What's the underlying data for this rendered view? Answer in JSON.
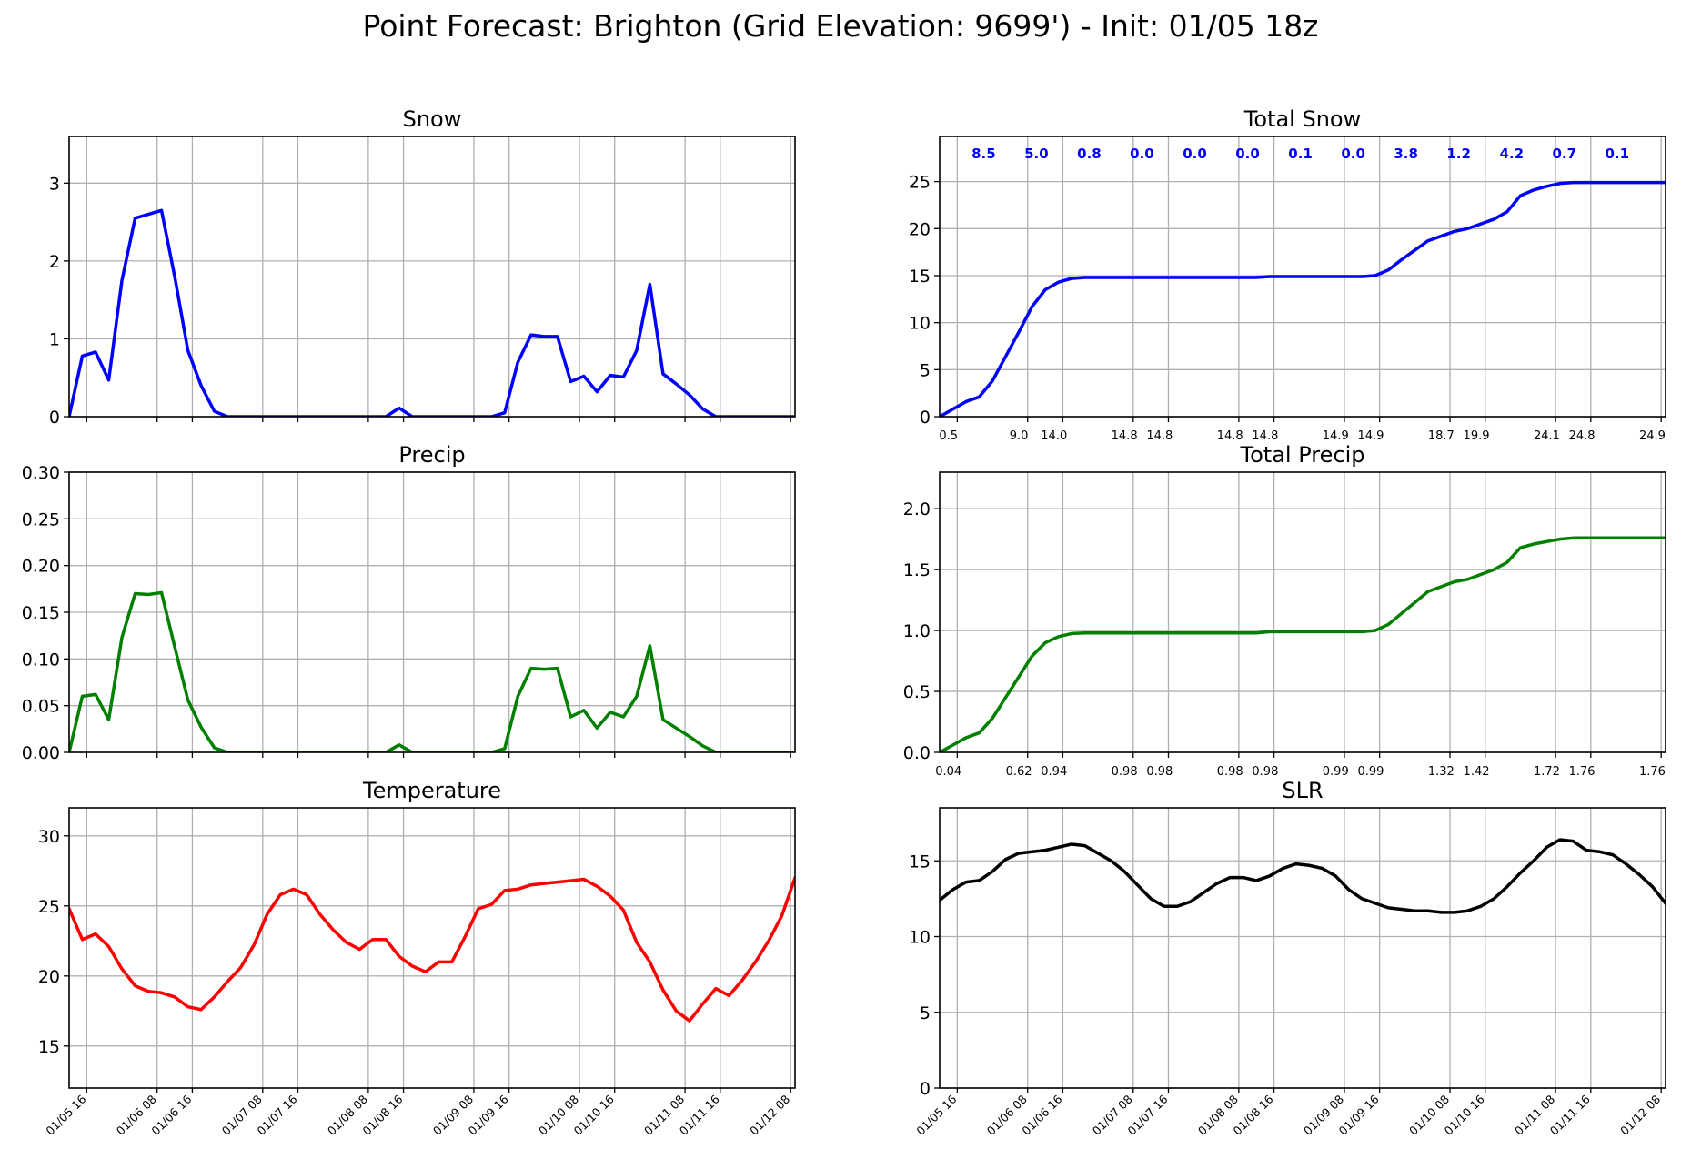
{
  "figure": {
    "title": "Point Forecast: Brighton (Grid Elevation: 9699') - Init: 01/05 18z"
  },
  "time_ticks": [
    "01/05 16",
    "01/06 08",
    "01/06 16",
    "01/07 08",
    "01/07 16",
    "01/08 08",
    "01/08 16",
    "01/09 08",
    "01/09 16",
    "01/10 08",
    "01/10 16",
    "01/11 08",
    "01/11 16",
    "01/12 08"
  ],
  "time_tick_hours": [
    22,
    38,
    46,
    62,
    70,
    86,
    94,
    110,
    118,
    134,
    142,
    158,
    166,
    182
  ],
  "chart_data": [
    {
      "id": "snow",
      "type": "line",
      "title": "Snow",
      "color": "#0000ff",
      "xlim": [
        18,
        183
      ],
      "ylim": [
        0,
        3.6
      ],
      "yticks": [
        0,
        1,
        2,
        3
      ],
      "x_ticklabels_visible": false,
      "x": [
        18,
        21,
        24,
        27,
        30,
        33,
        36,
        39,
        42,
        45,
        48,
        51,
        54,
        57,
        60,
        63,
        66,
        69,
        72,
        75,
        78,
        81,
        84,
        87,
        90,
        93,
        96,
        99,
        102,
        105,
        108,
        111,
        114,
        117,
        120,
        123,
        126,
        129,
        132,
        135,
        138,
        141,
        144,
        147,
        150,
        153,
        156,
        159,
        162,
        165,
        168,
        171,
        174,
        177,
        180,
        183
      ],
      "values": [
        0,
        0.78,
        0.83,
        0.47,
        1.75,
        2.55,
        2.6,
        2.65,
        1.8,
        0.85,
        0.4,
        0.07,
        0,
        0,
        0,
        0,
        0,
        0,
        0,
        0,
        0,
        0,
        0,
        0,
        0,
        0.11,
        0,
        0,
        0,
        0,
        0,
        0,
        0,
        0.05,
        0.7,
        1.05,
        1.03,
        1.03,
        0.45,
        0.52,
        0.32,
        0.53,
        0.51,
        0.85,
        1.7,
        0.55,
        0.42,
        0.28,
        0.1,
        0,
        0,
        0,
        0,
        0,
        0,
        0
      ]
    },
    {
      "id": "total_snow",
      "type": "line",
      "title": "Total Snow",
      "color": "#0000ff",
      "xlim": [
        18,
        183
      ],
      "ylim": [
        0,
        29.8
      ],
      "yticks": [
        0,
        5,
        10,
        15,
        20,
        25
      ],
      "x": [
        18,
        21,
        24,
        27,
        30,
        33,
        36,
        39,
        42,
        45,
        48,
        51,
        54,
        57,
        60,
        63,
        66,
        69,
        72,
        75,
        78,
        81,
        84,
        87,
        90,
        93,
        96,
        99,
        102,
        105,
        108,
        111,
        114,
        117,
        120,
        123,
        126,
        129,
        132,
        135,
        138,
        141,
        144,
        147,
        150,
        153,
        156,
        159,
        162,
        165,
        168,
        171,
        174,
        177,
        180,
        183
      ],
      "values": [
        0,
        0.8,
        1.6,
        2.1,
        3.8,
        6.4,
        9.0,
        11.7,
        13.5,
        14.3,
        14.7,
        14.8,
        14.8,
        14.8,
        14.8,
        14.8,
        14.8,
        14.8,
        14.8,
        14.8,
        14.8,
        14.8,
        14.8,
        14.8,
        14.8,
        14.9,
        14.9,
        14.9,
        14.9,
        14.9,
        14.9,
        14.9,
        14.9,
        15.0,
        15.6,
        16.7,
        17.7,
        18.7,
        19.2,
        19.7,
        20.0,
        20.5,
        21.0,
        21.8,
        23.5,
        24.1,
        24.5,
        24.8,
        24.9,
        24.9,
        24.9,
        24.9,
        24.9,
        24.9,
        24.9,
        24.9
      ],
      "annotation_x": [
        28,
        40,
        52,
        64,
        76,
        88,
        100,
        112,
        124,
        136,
        148,
        160,
        172
      ],
      "annotations": [
        "8.5",
        "5.0",
        "0.8",
        "0.0",
        "0.0",
        "0.0",
        "0.1",
        "0.0",
        "3.8",
        "1.2",
        "4.2",
        "0.7",
        "0.1"
      ],
      "cumulative_label_x": [
        20,
        36,
        44,
        60,
        68,
        84,
        92,
        108,
        116,
        132,
        140,
        156,
        164,
        180
      ],
      "cumulative_labels": [
        "0.5",
        "9.0",
        "14.0",
        "14.8",
        "14.8",
        "14.8",
        "14.8",
        "14.9",
        "14.9",
        "18.7",
        "19.9",
        "24.1",
        "24.8",
        "24.9"
      ]
    },
    {
      "id": "precip",
      "type": "line",
      "title": "Precip",
      "color": "#008000",
      "xlim": [
        18,
        183
      ],
      "ylim": [
        0,
        0.3
      ],
      "yticks": [
        0.0,
        0.05,
        0.1,
        0.15,
        0.2,
        0.25,
        0.3
      ],
      "x_ticklabels_visible": false,
      "x": [
        18,
        21,
        24,
        27,
        30,
        33,
        36,
        39,
        42,
        45,
        48,
        51,
        54,
        57,
        60,
        63,
        66,
        69,
        72,
        75,
        78,
        81,
        84,
        87,
        90,
        93,
        96,
        99,
        102,
        105,
        108,
        111,
        114,
        117,
        120,
        123,
        126,
        129,
        132,
        135,
        138,
        141,
        144,
        147,
        150,
        153,
        156,
        159,
        162,
        165,
        168,
        171,
        174,
        177,
        180,
        183
      ],
      "values": [
        0,
        0.06,
        0.062,
        0.035,
        0.123,
        0.17,
        0.169,
        0.171,
        0.113,
        0.056,
        0.027,
        0.005,
        0,
        0,
        0,
        0,
        0,
        0,
        0,
        0,
        0,
        0,
        0,
        0,
        0,
        0.008,
        0,
        0,
        0,
        0,
        0,
        0,
        0,
        0.004,
        0.06,
        0.09,
        0.089,
        0.09,
        0.038,
        0.045,
        0.026,
        0.043,
        0.038,
        0.06,
        0.114,
        0.035,
        0.026,
        0.017,
        0.007,
        0,
        0,
        0,
        0,
        0,
        0,
        0
      ]
    },
    {
      "id": "total_precip",
      "type": "line",
      "title": "Total Precip",
      "color": "#008000",
      "xlim": [
        18,
        183
      ],
      "ylim": [
        0,
        2.3
      ],
      "yticks": [
        0.0,
        0.5,
        1.0,
        1.5,
        2.0
      ],
      "x": [
        18,
        21,
        24,
        27,
        30,
        33,
        36,
        39,
        42,
        45,
        48,
        51,
        54,
        57,
        60,
        63,
        66,
        69,
        72,
        75,
        78,
        81,
        84,
        87,
        90,
        93,
        96,
        99,
        102,
        105,
        108,
        111,
        114,
        117,
        120,
        123,
        126,
        129,
        132,
        135,
        138,
        141,
        144,
        147,
        150,
        153,
        156,
        159,
        162,
        165,
        168,
        171,
        174,
        177,
        180,
        183
      ],
      "values": [
        0,
        0.06,
        0.12,
        0.16,
        0.28,
        0.45,
        0.62,
        0.79,
        0.9,
        0.95,
        0.975,
        0.98,
        0.98,
        0.98,
        0.98,
        0.98,
        0.98,
        0.98,
        0.98,
        0.98,
        0.98,
        0.98,
        0.98,
        0.98,
        0.98,
        0.99,
        0.99,
        0.99,
        0.99,
        0.99,
        0.99,
        0.99,
        0.99,
        1.0,
        1.05,
        1.14,
        1.23,
        1.32,
        1.36,
        1.4,
        1.42,
        1.46,
        1.5,
        1.56,
        1.68,
        1.71,
        1.73,
        1.75,
        1.76,
        1.76,
        1.76,
        1.76,
        1.76,
        1.76,
        1.76,
        1.76
      ],
      "cumulative_label_x": [
        20,
        36,
        44,
        60,
        68,
        84,
        92,
        108,
        116,
        132,
        140,
        156,
        164,
        180
      ],
      "cumulative_labels": [
        "0.04",
        "0.62",
        "0.94",
        "0.98",
        "0.98",
        "0.98",
        "0.98",
        "0.99",
        "0.99",
        "1.32",
        "1.42",
        "1.72",
        "1.76",
        "1.76"
      ]
    },
    {
      "id": "temperature",
      "type": "line",
      "title": "Temperature",
      "color": "#ff0000",
      "xlim": [
        18,
        183
      ],
      "ylim": [
        12,
        32
      ],
      "yticks": [
        15,
        20,
        25,
        30
      ],
      "x": [
        18,
        21,
        24,
        27,
        30,
        33,
        36,
        39,
        42,
        45,
        48,
        51,
        54,
        57,
        60,
        63,
        66,
        69,
        72,
        75,
        78,
        81,
        84,
        87,
        90,
        93,
        96,
        99,
        102,
        105,
        108,
        111,
        114,
        117,
        120,
        123,
        126,
        129,
        132,
        135,
        138,
        141,
        144,
        147,
        150,
        153,
        156,
        159,
        162,
        165,
        168,
        171,
        174,
        177,
        180,
        183
      ],
      "values": [
        24.8,
        22.6,
        23.0,
        22.1,
        20.5,
        19.3,
        18.9,
        18.8,
        18.5,
        17.8,
        17.6,
        18.5,
        19.6,
        20.6,
        22.2,
        24.4,
        25.8,
        26.2,
        25.8,
        24.4,
        23.3,
        22.4,
        21.9,
        22.6,
        22.6,
        21.4,
        20.7,
        20.3,
        21.0,
        21.0,
        22.8,
        24.8,
        25.1,
        26.1,
        26.2,
        26.5,
        26.6,
        26.7,
        26.8,
        26.9,
        26.4,
        25.7,
        24.7,
        22.4,
        21.0,
        19.0,
        17.5,
        16.8,
        18.0,
        19.1,
        18.6,
        19.7,
        21.0,
        22.5,
        24.3,
        27.0
      ]
    },
    {
      "id": "slr",
      "type": "line",
      "title": "SLR",
      "color": "#000000",
      "xlim": [
        18,
        183
      ],
      "ylim": [
        0,
        18.5
      ],
      "yticks": [
        0,
        5,
        10,
        15
      ],
      "x": [
        18,
        21,
        24,
        27,
        30,
        33,
        36,
        39,
        42,
        45,
        48,
        51,
        54,
        57,
        60,
        63,
        66,
        69,
        72,
        75,
        78,
        81,
        84,
        87,
        90,
        93,
        96,
        99,
        102,
        105,
        108,
        111,
        114,
        117,
        120,
        123,
        126,
        129,
        132,
        135,
        138,
        141,
        144,
        147,
        150,
        153,
        156,
        159,
        162,
        165,
        168,
        171,
        174,
        177,
        180,
        183
      ],
      "values": [
        12.4,
        13.1,
        13.6,
        13.7,
        14.3,
        15.1,
        15.5,
        15.6,
        15.7,
        15.9,
        16.1,
        16.0,
        15.5,
        15.0,
        14.3,
        13.4,
        12.5,
        12.0,
        12.0,
        12.3,
        12.9,
        13.5,
        13.9,
        13.9,
        13.7,
        14.0,
        14.5,
        14.8,
        14.7,
        14.5,
        14.0,
        13.1,
        12.5,
        12.2,
        11.9,
        11.8,
        11.7,
        11.7,
        11.6,
        11.6,
        11.7,
        12.0,
        12.5,
        13.3,
        14.2,
        15.0,
        15.9,
        16.4,
        16.3,
        15.7,
        15.6,
        15.4,
        14.8,
        14.1,
        13.3,
        12.2
      ]
    }
  ]
}
